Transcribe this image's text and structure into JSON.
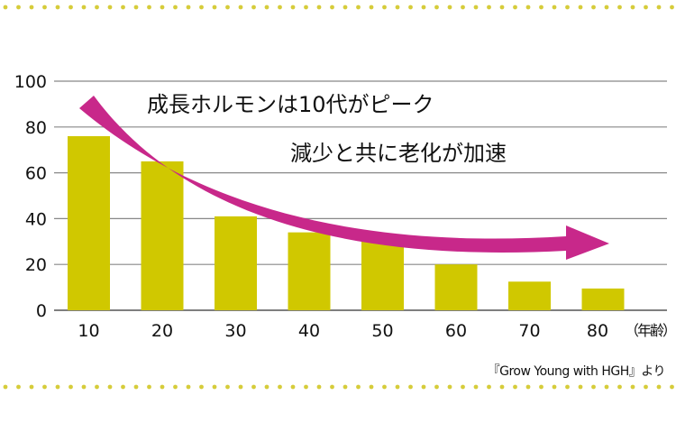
{
  "chart_data": {
    "type": "bar",
    "categories": [
      "10",
      "20",
      "30",
      "40",
      "50",
      "60",
      "70",
      "80"
    ],
    "values": [
      76,
      65,
      41,
      34,
      30,
      20,
      12.5,
      9.5
    ],
    "xlabel": "（年齢）",
    "ylabel": "",
    "ylim": [
      0,
      100
    ],
    "yticks": [
      "0",
      "20",
      "40",
      "60",
      "80",
      "100"
    ],
    "grid": true,
    "annotations": [
      "成長ホルモンは10代がピーク",
      "減少と共に老化が加速"
    ],
    "source": "『Grow Young with HGH』より",
    "colors": {
      "bar": "#d0c800",
      "arrow": "#c8288a",
      "grid": "#888888",
      "dots": "#d6cc3a"
    }
  }
}
